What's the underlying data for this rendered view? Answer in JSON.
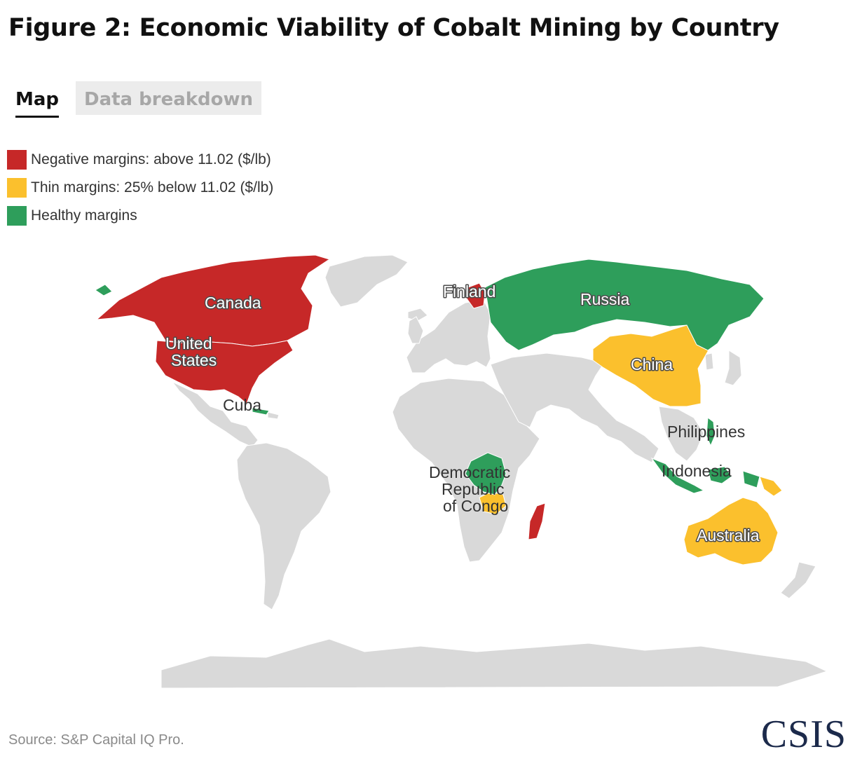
{
  "title": "Figure 2: Economic Viability of Cobalt Mining by Country",
  "tabs": [
    {
      "label": "Map",
      "active": true
    },
    {
      "label": "Data breakdown",
      "active": false
    }
  ],
  "legend": [
    {
      "label": "Negative margins: above 11.02 ($/lb)",
      "color": "#c62828",
      "category": "negative"
    },
    {
      "label": "Thin margins: 25% below 11.02 ($/lb)",
      "color": "#fbc02d",
      "category": "thin"
    },
    {
      "label": "Healthy margins",
      "color": "#2e9e5b",
      "category": "healthy"
    }
  ],
  "colors": {
    "land": "#d9d9d9",
    "border": "#ffffff",
    "ocean": "#ffffff"
  },
  "countries": [
    {
      "name": "Canada",
      "category": "negative"
    },
    {
      "name": "United States",
      "category": "negative"
    },
    {
      "name": "Finland",
      "category": "negative"
    },
    {
      "name": "Madagascar",
      "category": "negative"
    },
    {
      "name": "China",
      "category": "thin"
    },
    {
      "name": "Australia",
      "category": "thin"
    },
    {
      "name": "Papua New Guinea",
      "category": "thin"
    },
    {
      "name": "Zambia",
      "category": "thin"
    },
    {
      "name": "Russia",
      "category": "healthy"
    },
    {
      "name": "Democratic Republic of Congo",
      "category": "healthy"
    },
    {
      "name": "Cuba",
      "category": "healthy"
    },
    {
      "name": "Philippines",
      "category": "healthy"
    },
    {
      "name": "Indonesia",
      "category": "healthy"
    }
  ],
  "map_labels": {
    "canada": "Canada",
    "us_line1": "United",
    "us_line2": "States",
    "finland": "Finland",
    "russia": "Russia",
    "china": "China",
    "cuba": "Cuba",
    "philippines": "Philippines",
    "indonesia": "Indonesia",
    "drc_line1": "Democratic",
    "drc_line2": "Republic",
    "drc_line3": "of Congo",
    "australia": "Australia"
  },
  "source": "Source: S&P Capital IQ Pro.",
  "logo": "CSIS"
}
